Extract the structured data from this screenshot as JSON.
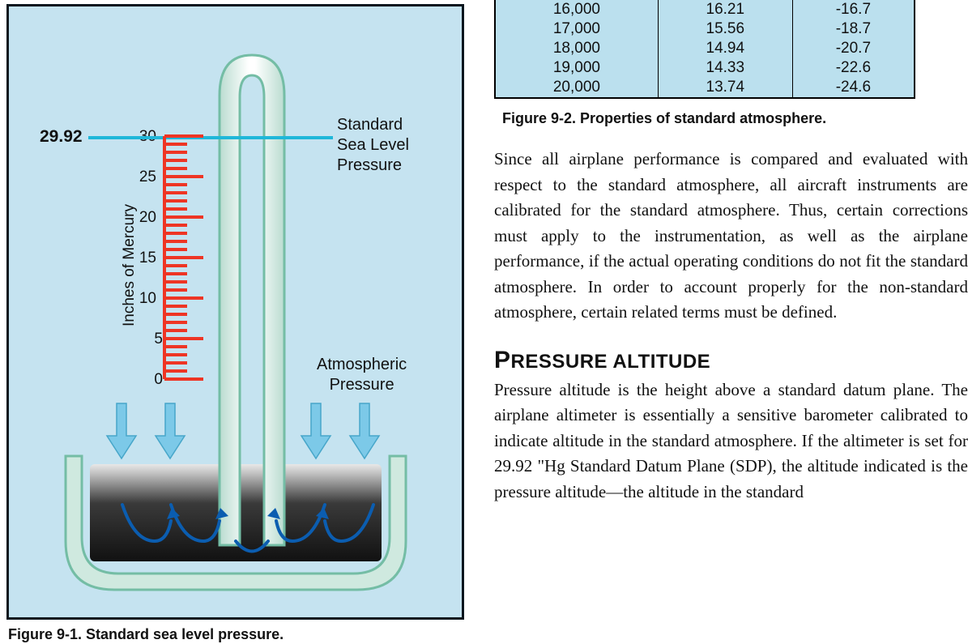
{
  "figure1": {
    "caption": "Figure 9-1. Standard sea level pressure.",
    "background_color": "#c5e3f0",
    "border_color": "#0b161e",
    "axis_label": "Inches of Mercury",
    "pressure_value": "29.92",
    "scale": {
      "min": 0,
      "max": 30,
      "tick_step": 5,
      "tick_labels": [
        "0",
        "5",
        "10",
        "15",
        "20",
        "25",
        "30"
      ],
      "tick_color": "#ee3524",
      "label_fontsize": 19
    },
    "labels": {
      "std_sea_level_line1": "Standard",
      "std_sea_level_line2": "Sea Level",
      "std_sea_level_line3": "Pressure",
      "atm_pressure_line1": "Atmospheric",
      "atm_pressure_line2": "Pressure"
    },
    "indicator_line_color": "#1fb7d9",
    "arrow_color": "#7cc9e8",
    "arrow_stroke": "#47a6c9",
    "swirl_color": "#0b5db0",
    "tube_fill": "#cfe9df",
    "tube_stroke": "#74bda5",
    "container_fill": "#cfe9df",
    "container_stroke": "#74bda5",
    "mercury_dark": "#2a2a2a",
    "mercury_light": "#d9d9d9"
  },
  "figure2": {
    "caption": "Figure 9-2. Properties of standard atmosphere.",
    "background_color": "#bbe0ee",
    "border_color": "#000000",
    "cell_fontsize": 19,
    "columns_visible": 3,
    "rows": [
      [
        "16,000",
        "16.21",
        "-16.7"
      ],
      [
        "17,000",
        "15.56",
        "-18.7"
      ],
      [
        "18,000",
        "14.94",
        "-20.7"
      ],
      [
        "19,000",
        "14.33",
        "-22.6"
      ],
      [
        "20,000",
        "13.74",
        "-24.6"
      ]
    ]
  },
  "paragraph1": "Since all airplane performance is compared and evaluated with respect to the standard atmosphere, all aircraft instruments are calibrated for the standard atmosphere. Thus, certain corrections must apply to the instrumentation, as well as the airplane performance, if the actual operating conditions do not fit the standard atmosphere. In order to account properly for the non-standard atmosphere, certain related terms must be defined.",
  "section_heading_first": "P",
  "section_heading_rest": "RESSURE ALTITUDE",
  "paragraph2": "Pressure altitude is the height above a standard datum plane. The airplane altimeter is essentially a sensitive barometer calibrated to indicate altitude in the standard atmosphere. If the altimeter is set for 29.92 \"Hg Standard Datum Plane (SDP), the altitude indicated is the pressure altitude—the altitude in the standard"
}
